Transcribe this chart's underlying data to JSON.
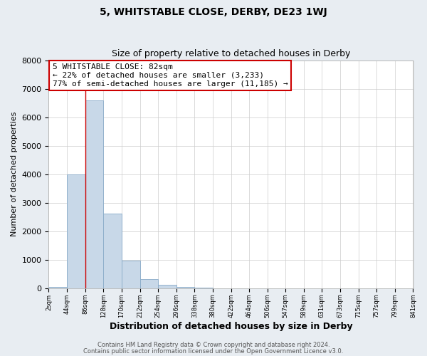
{
  "title": "5, WHITSTABLE CLOSE, DERBY, DE23 1WJ",
  "subtitle": "Size of property relative to detached houses in Derby",
  "xlabel": "Distribution of detached houses by size in Derby",
  "ylabel": "Number of detached properties",
  "bar_lefts": [
    2,
    44,
    86,
    128,
    170,
    212,
    254,
    296,
    338,
    380,
    422,
    464,
    506,
    547,
    589,
    631,
    673,
    715,
    757,
    799
  ],
  "bar_widths": [
    42,
    42,
    42,
    42,
    42,
    42,
    42,
    42,
    42,
    42,
    42,
    42,
    41,
    42,
    42,
    42,
    42,
    42,
    42,
    42
  ],
  "bar_heights": [
    55,
    4000,
    6600,
    2625,
    975,
    320,
    130,
    55,
    15,
    5,
    5,
    0,
    0,
    0,
    0,
    0,
    0,
    0,
    0,
    0
  ],
  "bar_color": "#c8d8e8",
  "bar_edge_color": "#88aac8",
  "property_line_x": 86,
  "property_line_color": "#cc0000",
  "xlim": [
    2,
    841
  ],
  "ylim": [
    0,
    8000
  ],
  "yticks": [
    0,
    1000,
    2000,
    3000,
    4000,
    5000,
    6000,
    7000,
    8000
  ],
  "xtick_positions": [
    2,
    44,
    86,
    128,
    170,
    212,
    254,
    296,
    338,
    380,
    422,
    464,
    506,
    547,
    589,
    631,
    673,
    715,
    757,
    799,
    841
  ],
  "xtick_labels": [
    "2sqm",
    "44sqm",
    "86sqm",
    "128sqm",
    "170sqm",
    "212sqm",
    "254sqm",
    "296sqm",
    "338sqm",
    "380sqm",
    "422sqm",
    "464sqm",
    "506sqm",
    "547sqm",
    "589sqm",
    "631sqm",
    "673sqm",
    "715sqm",
    "757sqm",
    "799sqm",
    "841sqm"
  ],
  "annotation_lines": [
    "5 WHITSTABLE CLOSE: 82sqm",
    "← 22% of detached houses are smaller (3,233)",
    "77% of semi-detached houses are larger (11,185) →"
  ],
  "footer_line1": "Contains HM Land Registry data © Crown copyright and database right 2024.",
  "footer_line2": "Contains public sector information licensed under the Open Government Licence v3.0.",
  "fig_bg_color": "#e8edf2",
  "plot_bg_color": "#ffffff",
  "grid_color": "#cccccc",
  "title_fontsize": 10,
  "subtitle_fontsize": 9,
  "xlabel_fontsize": 9,
  "ylabel_fontsize": 8,
  "ytick_fontsize": 8,
  "xtick_fontsize": 6,
  "annotation_fontsize": 8,
  "footer_fontsize": 6
}
